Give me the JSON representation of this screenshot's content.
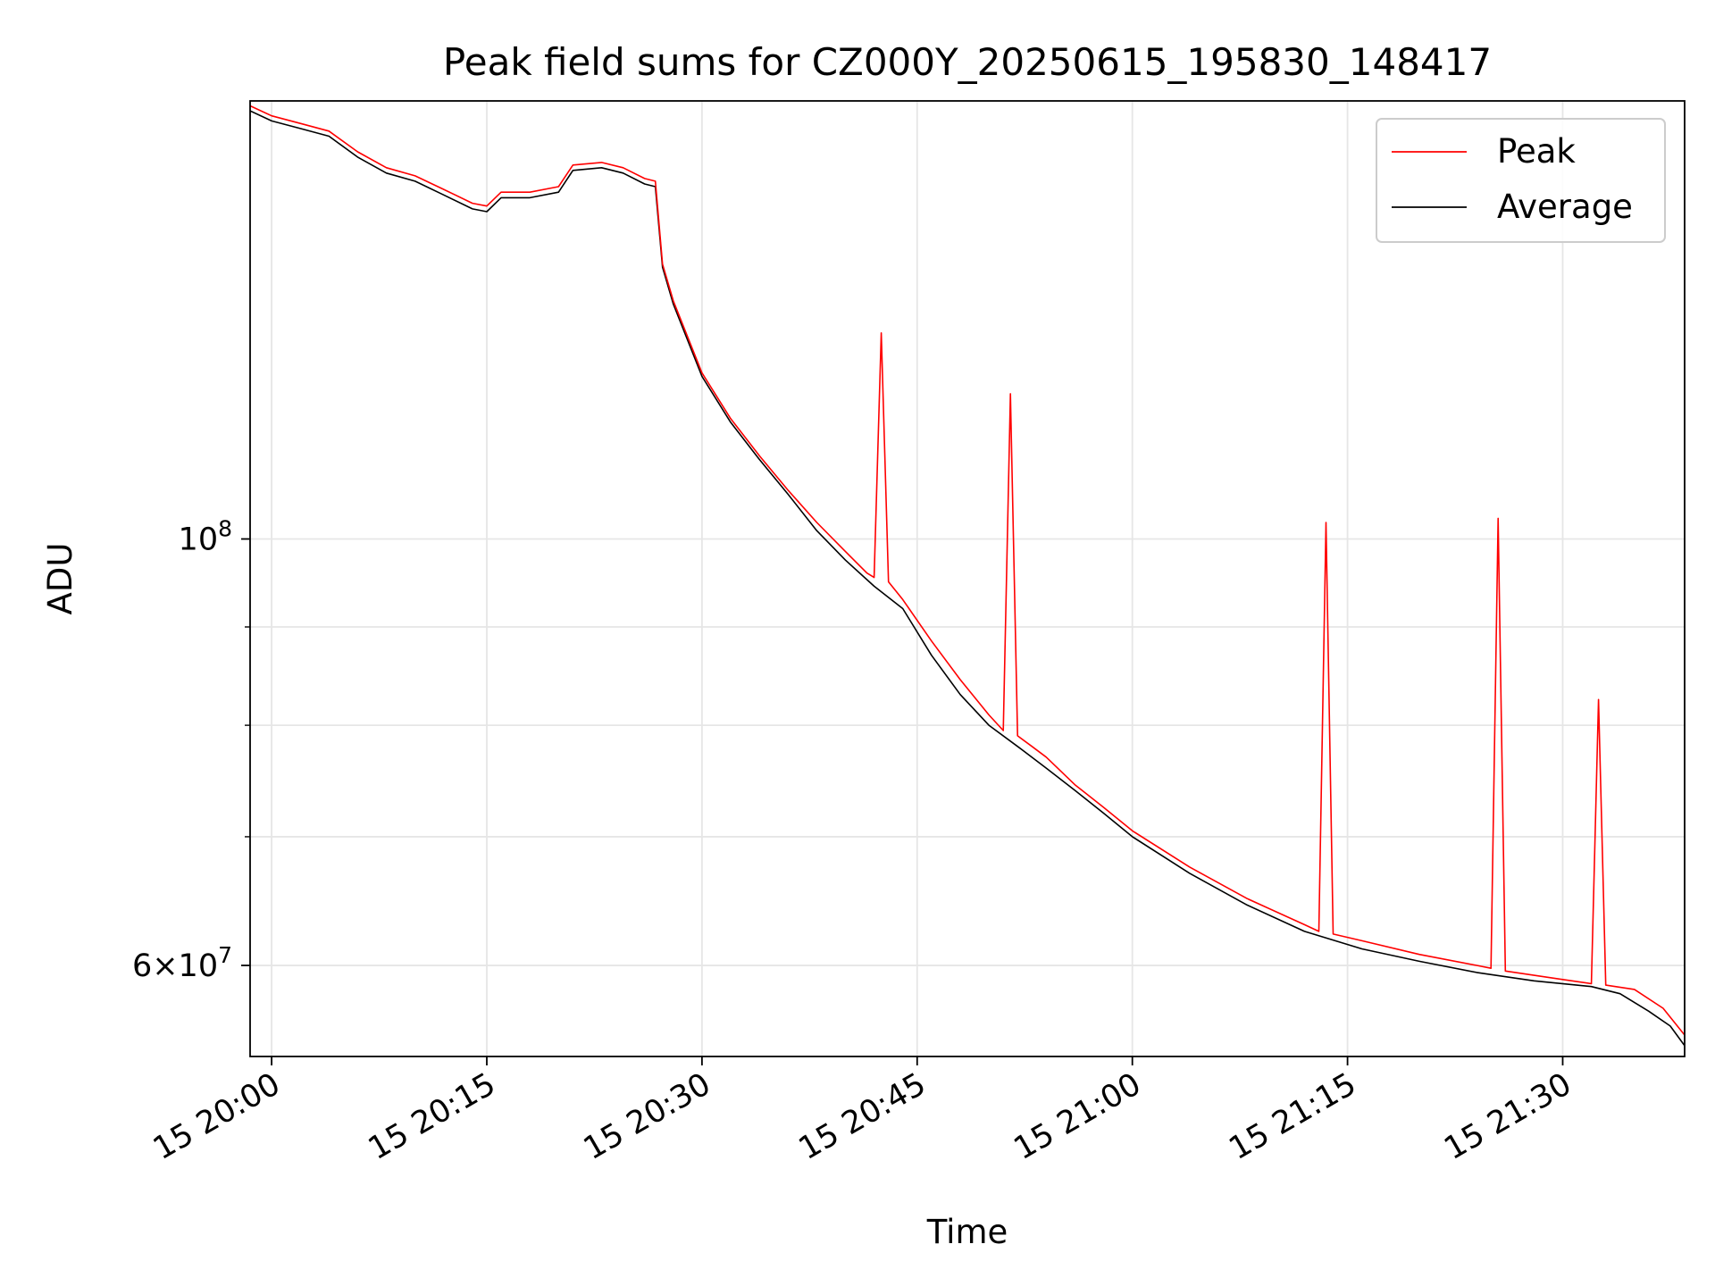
{
  "chart_data": {
    "type": "line",
    "title": "Peak field sums for CZ000Y_20250615_195830_148417",
    "xlabel": "Time",
    "ylabel": "ADU",
    "yscale": "log",
    "xlim": [
      "2025-06-15T19:58:30",
      "2025-06-15T21:38:30"
    ],
    "ylim": [
      53800000,
      169000000
    ],
    "x_ticks": [
      {
        "time": "2025-06-15T20:00",
        "label": "15 20:00"
      },
      {
        "time": "2025-06-15T20:15",
        "label": "15 20:15"
      },
      {
        "time": "2025-06-15T20:30",
        "label": "15 20:30"
      },
      {
        "time": "2025-06-15T20:45",
        "label": "15 20:45"
      },
      {
        "time": "2025-06-15T21:00",
        "label": "15 21:00"
      },
      {
        "time": "2025-06-15T21:15",
        "label": "15 21:15"
      },
      {
        "time": "2025-06-15T21:30",
        "label": "15 21:30"
      }
    ],
    "y_ticks_labeled": [
      {
        "value": 60000000,
        "mantissa": "6",
        "exponent": "7"
      },
      {
        "value": 100000000,
        "mantissa": "",
        "exponent": "8"
      }
    ],
    "y_ticks_minor": [
      70000000,
      80000000,
      90000000
    ],
    "grid": true,
    "legend_position": "upper right",
    "series": [
      {
        "name": "Peak",
        "color": "#ff0000",
        "points": [
          [
            "2025-06-15T19:58:30",
            168000000
          ],
          [
            "2025-06-15T20:00:00",
            166000000
          ],
          [
            "2025-06-15T20:02:00",
            164500000
          ],
          [
            "2025-06-15T20:04:00",
            163000000
          ],
          [
            "2025-06-15T20:06:00",
            159000000
          ],
          [
            "2025-06-15T20:08:00",
            156000000
          ],
          [
            "2025-06-15T20:10:00",
            154500000
          ],
          [
            "2025-06-15T20:12:00",
            152000000
          ],
          [
            "2025-06-15T20:14:00",
            149500000
          ],
          [
            "2025-06-15T20:15:00",
            149000000
          ],
          [
            "2025-06-15T20:16:00",
            151500000
          ],
          [
            "2025-06-15T20:18:00",
            151500000
          ],
          [
            "2025-06-15T20:20:00",
            152500000
          ],
          [
            "2025-06-15T20:21:00",
            156500000
          ],
          [
            "2025-06-15T20:23:00",
            157000000
          ],
          [
            "2025-06-15T20:24:30",
            156000000
          ],
          [
            "2025-06-15T20:26:00",
            154000000
          ],
          [
            "2025-06-15T20:26:45",
            153500000
          ],
          [
            "2025-06-15T20:27:15",
            139000000
          ],
          [
            "2025-06-15T20:28:00",
            133000000
          ],
          [
            "2025-06-15T20:30:00",
            122000000
          ],
          [
            "2025-06-15T20:32:00",
            115500000
          ],
          [
            "2025-06-15T20:34:00",
            110500000
          ],
          [
            "2025-06-15T20:36:00",
            106000000
          ],
          [
            "2025-06-15T20:38:00",
            102000000
          ],
          [
            "2025-06-15T20:40:00",
            98500000
          ],
          [
            "2025-06-15T20:41:30",
            96000000
          ],
          [
            "2025-06-15T20:42:00",
            95500000
          ],
          [
            "2025-06-15T20:42:30",
            128000000
          ],
          [
            "2025-06-15T20:43:00",
            95000000
          ],
          [
            "2025-06-15T20:44:00",
            93000000
          ],
          [
            "2025-06-15T20:46:00",
            88500000
          ],
          [
            "2025-06-15T20:48:00",
            84500000
          ],
          [
            "2025-06-15T20:50:00",
            81000000
          ],
          [
            "2025-06-15T20:51:00",
            79500000
          ],
          [
            "2025-06-15T20:51:30",
            119000000
          ],
          [
            "2025-06-15T20:52:00",
            79000000
          ],
          [
            "2025-06-15T20:53:00",
            78000000
          ],
          [
            "2025-06-15T20:54:00",
            77000000
          ],
          [
            "2025-06-15T20:56:00",
            74500000
          ],
          [
            "2025-06-15T20:58:00",
            72500000
          ],
          [
            "2025-06-15T21:00:00",
            70500000
          ],
          [
            "2025-06-15T21:04:00",
            67500000
          ],
          [
            "2025-06-15T21:08:00",
            65000000
          ],
          [
            "2025-06-15T21:12:00",
            63000000
          ],
          [
            "2025-06-15T21:13:00",
            62500000
          ],
          [
            "2025-06-15T21:13:30",
            102000000
          ],
          [
            "2025-06-15T21:14:00",
            62300000
          ],
          [
            "2025-06-15T21:16:00",
            61800000
          ],
          [
            "2025-06-15T21:20:00",
            60800000
          ],
          [
            "2025-06-15T21:24:00",
            60000000
          ],
          [
            "2025-06-15T21:25:00",
            59800000
          ],
          [
            "2025-06-15T21:25:30",
            102500000
          ],
          [
            "2025-06-15T21:26:00",
            59600000
          ],
          [
            "2025-06-15T21:30:00",
            59000000
          ],
          [
            "2025-06-15T21:32:00",
            58700000
          ],
          [
            "2025-06-15T21:32:30",
            82500000
          ],
          [
            "2025-06-15T21:33:00",
            58600000
          ],
          [
            "2025-06-15T21:35:00",
            58300000
          ],
          [
            "2025-06-15T21:37:00",
            57000000
          ],
          [
            "2025-06-15T21:38:30",
            55200000
          ]
        ]
      },
      {
        "name": "Average",
        "color": "#000000",
        "points": [
          [
            "2025-06-15T19:58:30",
            167000000
          ],
          [
            "2025-06-15T20:00:00",
            165000000
          ],
          [
            "2025-06-15T20:02:00",
            163500000
          ],
          [
            "2025-06-15T20:04:00",
            162000000
          ],
          [
            "2025-06-15T20:06:00",
            158000000
          ],
          [
            "2025-06-15T20:08:00",
            155000000
          ],
          [
            "2025-06-15T20:10:00",
            153500000
          ],
          [
            "2025-06-15T20:12:00",
            151000000
          ],
          [
            "2025-06-15T20:14:00",
            148500000
          ],
          [
            "2025-06-15T20:15:00",
            148000000
          ],
          [
            "2025-06-15T20:16:00",
            150500000
          ],
          [
            "2025-06-15T20:18:00",
            150500000
          ],
          [
            "2025-06-15T20:20:00",
            151500000
          ],
          [
            "2025-06-15T20:21:00",
            155500000
          ],
          [
            "2025-06-15T20:23:00",
            156000000
          ],
          [
            "2025-06-15T20:24:30",
            155000000
          ],
          [
            "2025-06-15T20:26:00",
            153000000
          ],
          [
            "2025-06-15T20:26:45",
            152500000
          ],
          [
            "2025-06-15T20:27:15",
            138500000
          ],
          [
            "2025-06-15T20:28:00",
            132500000
          ],
          [
            "2025-06-15T20:30:00",
            121500000
          ],
          [
            "2025-06-15T20:32:00",
            115000000
          ],
          [
            "2025-06-15T20:34:00",
            110000000
          ],
          [
            "2025-06-15T20:36:00",
            105500000
          ],
          [
            "2025-06-15T20:38:00",
            101000000
          ],
          [
            "2025-06-15T20:40:00",
            97500000
          ],
          [
            "2025-06-15T20:42:00",
            94500000
          ],
          [
            "2025-06-15T20:44:00",
            92000000
          ],
          [
            "2025-06-15T20:46:00",
            87000000
          ],
          [
            "2025-06-15T20:48:00",
            83000000
          ],
          [
            "2025-06-15T20:50:00",
            80000000
          ],
          [
            "2025-06-15T20:52:00",
            78000000
          ],
          [
            "2025-06-15T20:54:00",
            76000000
          ],
          [
            "2025-06-15T20:56:00",
            74000000
          ],
          [
            "2025-06-15T20:58:00",
            72000000
          ],
          [
            "2025-06-15T21:00:00",
            70000000
          ],
          [
            "2025-06-15T21:04:00",
            67000000
          ],
          [
            "2025-06-15T21:08:00",
            64500000
          ],
          [
            "2025-06-15T21:12:00",
            62500000
          ],
          [
            "2025-06-15T21:16:00",
            61200000
          ],
          [
            "2025-06-15T21:20:00",
            60300000
          ],
          [
            "2025-06-15T21:24:00",
            59500000
          ],
          [
            "2025-06-15T21:28:00",
            58900000
          ],
          [
            "2025-06-15T21:32:00",
            58500000
          ],
          [
            "2025-06-15T21:34:00",
            58000000
          ],
          [
            "2025-06-15T21:36:00",
            56800000
          ],
          [
            "2025-06-15T21:37:30",
            55800000
          ],
          [
            "2025-06-15T21:38:30",
            54500000
          ]
        ]
      }
    ]
  }
}
